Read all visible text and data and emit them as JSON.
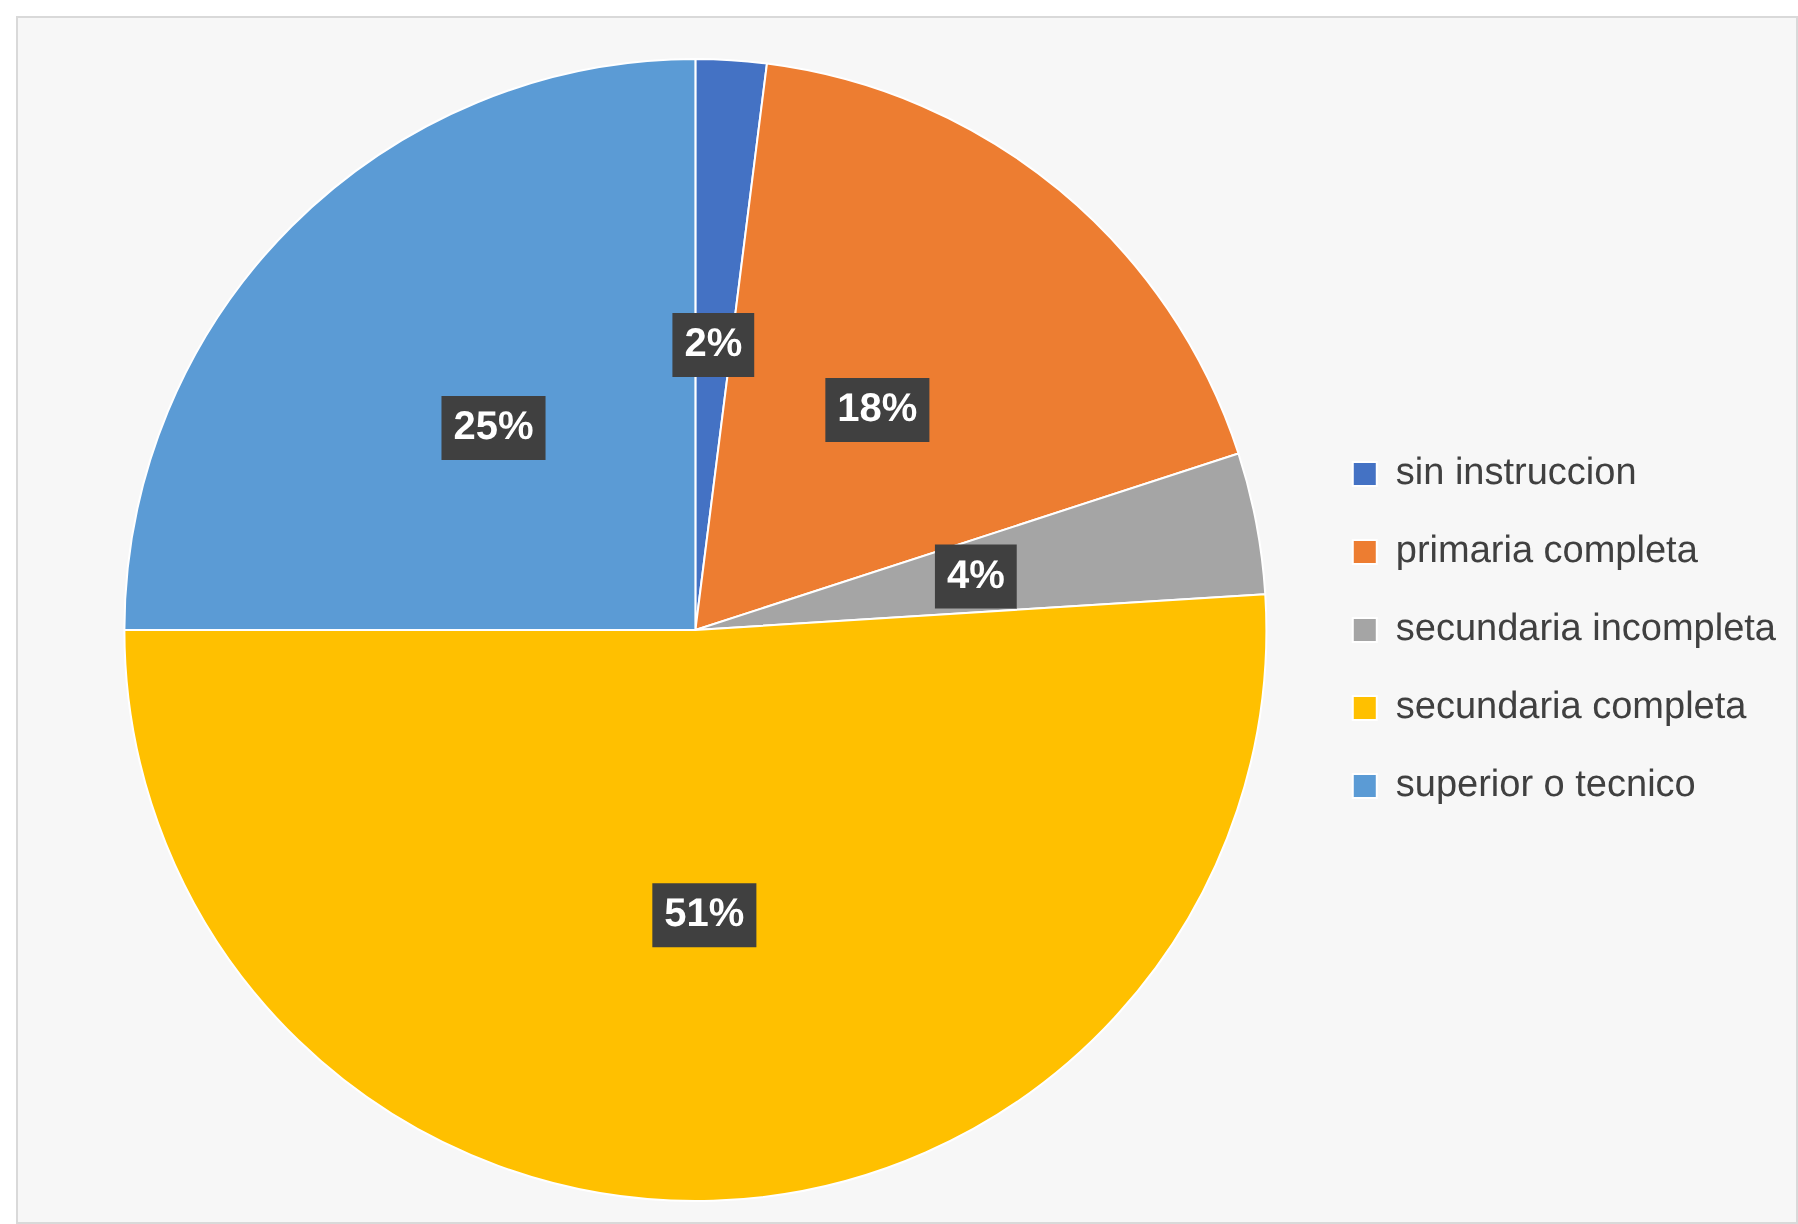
{
  "chart_data": {
    "type": "pie",
    "categories": [
      "sin instruccion",
      "primaria completa",
      "secundaria incompleta",
      "secundaria completa",
      "superior o tecnico"
    ],
    "values": [
      2,
      18,
      4,
      51,
      25
    ],
    "colors": [
      "#4472c4",
      "#ed7d31",
      "#a5a5a5",
      "#ffc000",
      "#5b9bd5"
    ],
    "value_labels": [
      "2%",
      "18%",
      "4%",
      "51%",
      "25%"
    ],
    "legend": "right"
  }
}
